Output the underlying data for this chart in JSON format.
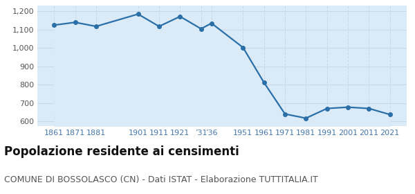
{
  "years": [
    1861,
    1871,
    1881,
    1901,
    1911,
    1921,
    1931,
    1936,
    1951,
    1961,
    1971,
    1981,
    1991,
    2001,
    2011,
    2021
  ],
  "population": [
    1125,
    1140,
    1118,
    1185,
    1118,
    1172,
    1105,
    1135,
    1003,
    812,
    641,
    618,
    671,
    678,
    671,
    638
  ],
  "line_color": "#2a6fa8",
  "fill_color": "#daeaf7",
  "marker_size": 4,
  "ylim": [
    575,
    1230
  ],
  "yticks": [
    600,
    700,
    800,
    900,
    1000,
    1100,
    1200
  ],
  "grid_color": "#c8d8e8",
  "background_color": "#ffffff",
  "title": "Popolazione residente ai censimenti",
  "subtitle": "COMUNE DI BOSSOLASCO (CN) - Dati ISTAT - Elaborazione TUTTITALIA.IT",
  "title_fontsize": 12,
  "subtitle_fontsize": 9,
  "xlim_left": 1853,
  "xlim_right": 2029
}
